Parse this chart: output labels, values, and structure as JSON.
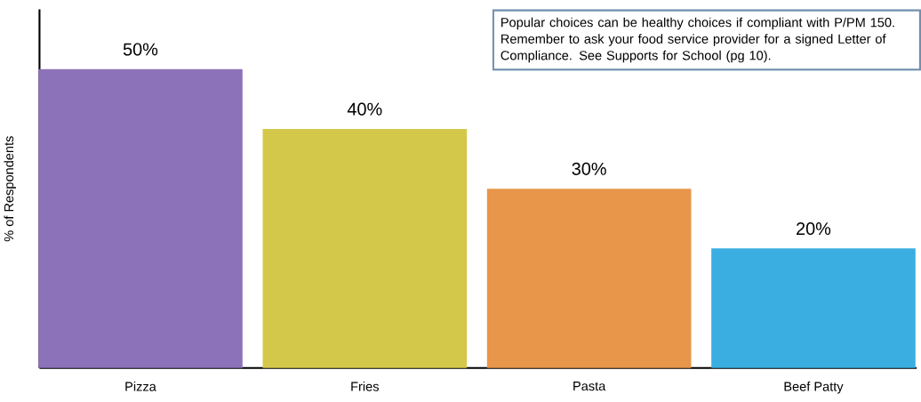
{
  "chart_data": {
    "type": "bar",
    "ylabel": "% of Respondents",
    "categories": [
      "Pizza",
      "Fries",
      "Pasta",
      "Beef Patty"
    ],
    "values": [
      50,
      40,
      30,
      20
    ],
    "colors": [
      "#8c72b8",
      "#d4c84a",
      "#e8964a",
      "#3aaee0"
    ],
    "value_labels": [
      "50%",
      "40%",
      "30%",
      "20%"
    ],
    "ylim": [
      0,
      60
    ],
    "annotations": [
      "Popular choices can be healthy choices if compliant with P/PM 150. Remember to ask your food service provider for a signed Letter of Compliance. See Supports for School (pg 10)."
    ]
  }
}
